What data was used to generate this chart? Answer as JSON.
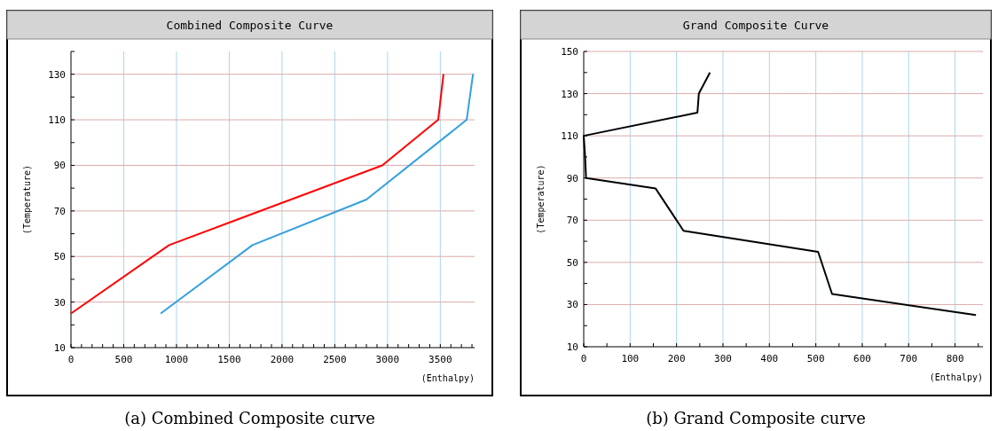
{
  "chart_data": [
    {
      "type": "line",
      "title": "Combined Composite Curve",
      "xlabel": "(Enthalpy)",
      "ylabel": "(Temperature)",
      "annotations": [
        "(a)  Combined Composite curve"
      ],
      "grid": true,
      "marker": "none",
      "line_style": "solid",
      "xlim": [
        0,
        3825
      ],
      "ylim": [
        10,
        140
      ],
      "xticks": [
        0,
        {
          "value": 100,
          "label": null
        },
        {
          "value": 200,
          "label": null
        },
        {
          "value": 300,
          "label": null
        },
        {
          "value": 400,
          "label": null
        },
        500,
        {
          "value": 600,
          "label": null
        },
        {
          "value": 700,
          "label": null
        },
        {
          "value": 800,
          "label": null
        },
        {
          "value": 900,
          "label": null
        },
        1000,
        {
          "value": 1100,
          "label": null
        },
        {
          "value": 1200,
          "label": null
        },
        {
          "value": 1300,
          "label": null
        },
        {
          "value": 1400,
          "label": null
        },
        1500,
        {
          "value": 1600,
          "label": null
        },
        {
          "value": 1700,
          "label": null
        },
        {
          "value": 1800,
          "label": null
        },
        {
          "value": 1900,
          "label": null
        },
        2000,
        {
          "value": 2100,
          "label": null
        },
        {
          "value": 2200,
          "label": null
        },
        {
          "value": 2300,
          "label": null
        },
        {
          "value": 2400,
          "label": null
        },
        2500,
        {
          "value": 2600,
          "label": null
        },
        {
          "value": 2700,
          "label": null
        },
        {
          "value": 2800,
          "label": null
        },
        {
          "value": 2900,
          "label": null
        },
        3000,
        {
          "value": 3100,
          "label": null
        },
        {
          "value": 3200,
          "label": null
        },
        {
          "value": 3300,
          "label": null
        },
        {
          "value": 3400,
          "label": null
        },
        3500,
        {
          "value": 3600,
          "label": null
        },
        {
          "value": 3700,
          "label": null
        },
        {
          "value": 3800,
          "label": null
        }
      ],
      "yticks": [
        10,
        {
          "value": 20,
          "label": null
        },
        30,
        {
          "value": 40,
          "label": null
        },
        50,
        {
          "value": 60,
          "label": null
        },
        70,
        {
          "value": 80,
          "label": null
        },
        90,
        {
          "value": 100,
          "label": null
        },
        110,
        {
          "value": 120,
          "label": null
        },
        130,
        {
          "value": 140,
          "label": null
        }
      ],
      "series": [
        {
          "color": "#ff0000",
          "x": [
            0,
            930,
            2950,
            3480,
            3530
          ],
          "values": [
            25,
            55,
            90,
            110,
            130
          ]
        },
        {
          "color": "#33a0e0",
          "x": [
            850,
            1720,
            2800,
            3750,
            3810
          ],
          "values": [
            25,
            55,
            75,
            110,
            130
          ]
        }
      ]
    },
    {
      "type": "line",
      "title": "Grand Composite Curve",
      "xlabel": "(Enthalpy)",
      "ylabel": "(Temperature)",
      "annotations": [
        "(b)  Grand Composite curve"
      ],
      "grid": true,
      "marker": "none",
      "line_style": "solid",
      "xlim": [
        0,
        860
      ],
      "ylim": [
        10,
        150
      ],
      "xticks": [
        0,
        {
          "value": 50,
          "label": null
        },
        100,
        {
          "value": 150,
          "label": null
        },
        200,
        {
          "value": 250,
          "label": null
        },
        300,
        {
          "value": 350,
          "label": null
        },
        400,
        {
          "value": 450,
          "label": null
        },
        500,
        {
          "value": 550,
          "label": null
        },
        600,
        {
          "value": 650,
          "label": null
        },
        700,
        {
          "value": 750,
          "label": null
        },
        800,
        {
          "value": 850,
          "label": null
        }
      ],
      "yticks": [
        10,
        {
          "value": 20,
          "label": null
        },
        30,
        {
          "value": 40,
          "label": null
        },
        50,
        {
          "value": 60,
          "label": null
        },
        70,
        {
          "value": 80,
          "label": null
        },
        90,
        {
          "value": 100,
          "label": null
        },
        110,
        {
          "value": 120,
          "label": null
        },
        130,
        {
          "value": 140,
          "label": null
        },
        150
      ],
      "series": [
        {
          "color": "#000000",
          "x": [
            272,
            248,
            245,
            0,
            3,
            5,
            155,
            215,
            505,
            535,
            845
          ],
          "values": [
            140,
            130,
            121,
            110,
            100,
            90,
            85,
            65,
            55,
            35,
            25
          ]
        }
      ]
    }
  ]
}
